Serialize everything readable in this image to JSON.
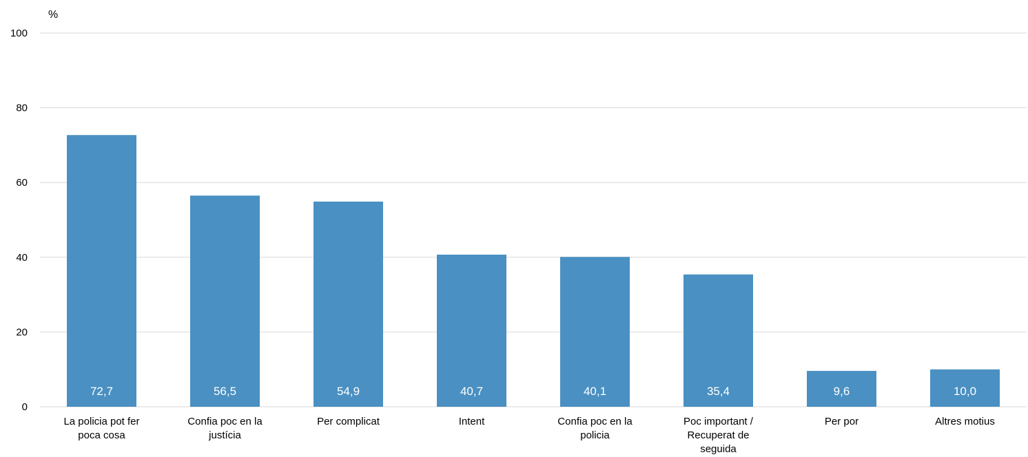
{
  "chart_data": {
    "type": "bar",
    "ylabel": "%",
    "ylim": [
      0,
      100
    ],
    "yticks": [
      "0",
      "20",
      "40",
      "60",
      "80",
      "100"
    ],
    "grid": true,
    "categories": [
      [
        "La policia pot fer",
        "poca cosa"
      ],
      [
        "Confia poc en la",
        "justícia"
      ],
      [
        "Per complicat"
      ],
      [
        "Intent"
      ],
      [
        "Confia poc en la",
        "policia"
      ],
      [
        "Poc important /",
        "Recuperat de",
        "seguida"
      ],
      [
        "Per por"
      ],
      [
        "Altres motius"
      ]
    ],
    "values": [
      72.7,
      56.5,
      54.9,
      40.7,
      40.1,
      35.4,
      9.6,
      10.0
    ],
    "value_labels": [
      "72,7",
      "56,5",
      "54,9",
      "40,7",
      "40,1",
      "35,4",
      "9,6",
      "10,0"
    ],
    "bar_color": "#4a90c2",
    "grid_color": "#d9d9d9"
  }
}
